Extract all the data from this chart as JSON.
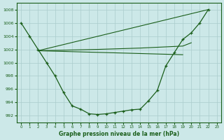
{
  "title": "Graphe pression niveau de la mer (hPa)",
  "background_color": "#cce8e8",
  "grid_color": "#aacccc",
  "line_color": "#1a5e1a",
  "xlim": [
    -0.5,
    23.5
  ],
  "ylim": [
    991.0,
    1009.0
  ],
  "yticks": [
    992,
    994,
    996,
    998,
    1000,
    1002,
    1004,
    1006,
    1008
  ],
  "xticks": [
    0,
    1,
    2,
    3,
    4,
    5,
    6,
    7,
    8,
    9,
    10,
    11,
    12,
    13,
    14,
    15,
    16,
    17,
    18,
    19,
    20,
    21,
    22,
    23
  ],
  "series_main": {
    "x": [
      0,
      1,
      2,
      3,
      4,
      5,
      6,
      7,
      8,
      9,
      10,
      11,
      12,
      13,
      14,
      15,
      16,
      17,
      18,
      19,
      20,
      21,
      22
    ],
    "y": [
      1006,
      1004,
      1002,
      1000,
      998,
      995.5,
      993.5,
      993.0,
      992.3,
      992.2,
      992.3,
      992.5,
      992.7,
      992.9,
      993.0,
      994.3,
      995.8,
      999.5,
      1001.5,
      1003.5,
      1004.5,
      1006.0,
      1008.0
    ]
  },
  "series_diag": {
    "x": [
      2,
      22
    ],
    "y": [
      1001.8,
      1008.0
    ]
  },
  "series_horiz": {
    "x": [
      2,
      19
    ],
    "y": [
      1001.8,
      1001.2
    ]
  },
  "series_extra": {
    "x": [
      2,
      9,
      14,
      19,
      20
    ],
    "y": [
      1001.8,
      1002.0,
      1002.2,
      1002.5,
      1003.0
    ]
  }
}
